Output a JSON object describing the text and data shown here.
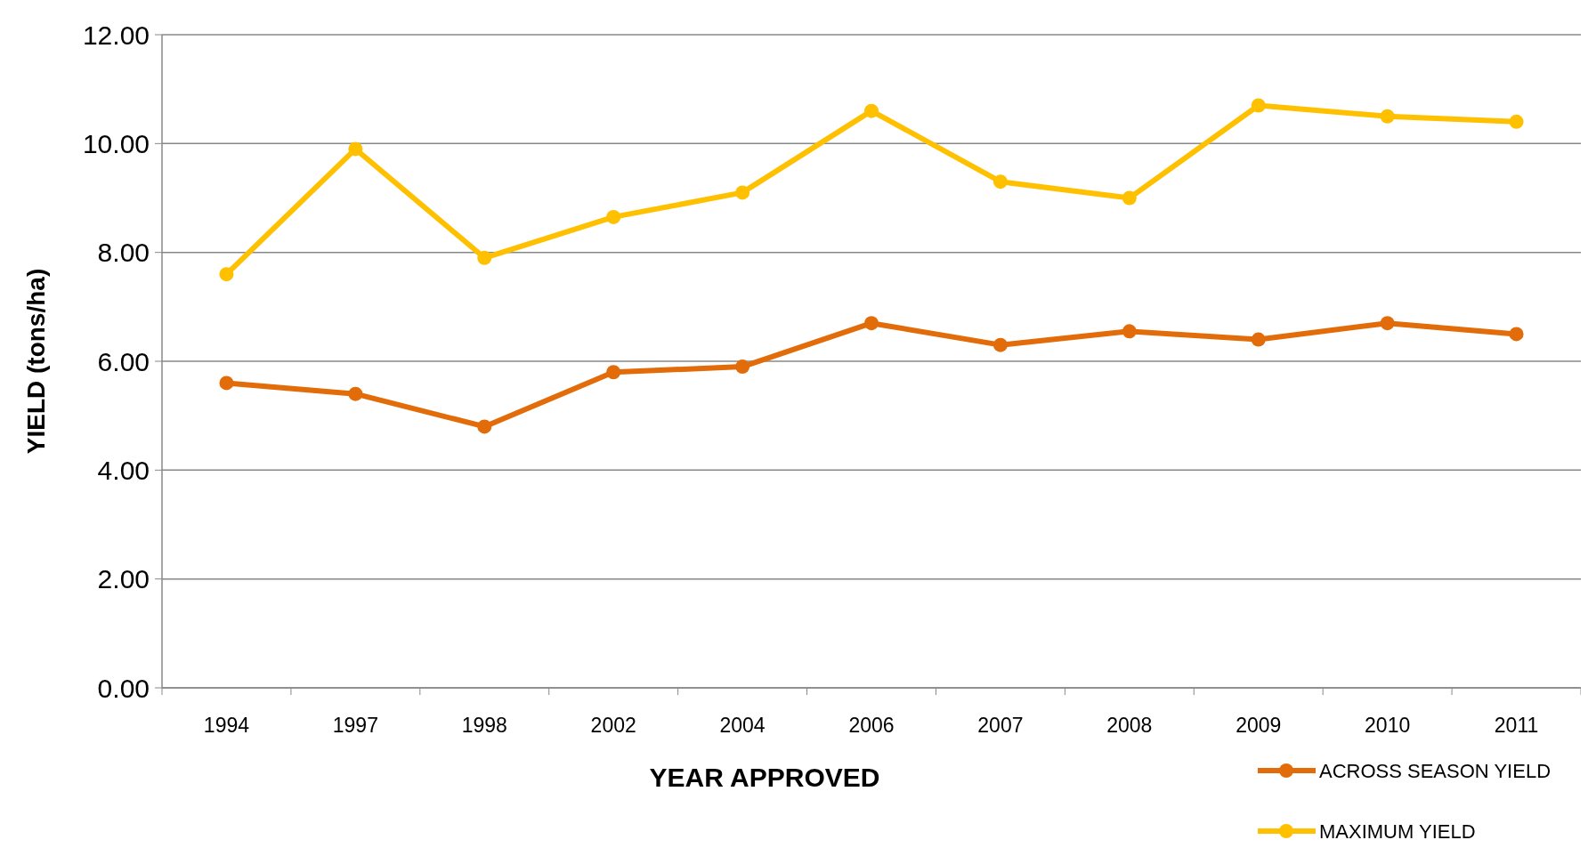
{
  "chart_data": {
    "type": "line",
    "xlabel": "YEAR APPROVED",
    "ylabel": "YIELD (tons/ha)",
    "categories": [
      "1994",
      "1997",
      "1998",
      "2002",
      "2004",
      "2006",
      "2007",
      "2008",
      "2009",
      "2010",
      "2011"
    ],
    "series": [
      {
        "name": "ACROSS SEASON YIELD",
        "color": "#e36c0a",
        "values": [
          5.6,
          5.4,
          4.8,
          5.8,
          5.9,
          6.7,
          6.3,
          6.55,
          6.4,
          6.7,
          6.5
        ]
      },
      {
        "name": "MAXIMUM YIELD",
        "color": "#ffc000",
        "values": [
          7.6,
          9.9,
          7.9,
          8.65,
          9.1,
          10.6,
          9.3,
          9.0,
          10.7,
          10.5,
          10.4
        ]
      }
    ],
    "ylim": [
      0,
      12
    ],
    "yticks": [
      {
        "value": 0,
        "label": "0.00"
      },
      {
        "value": 2,
        "label": "2.00"
      },
      {
        "value": 4,
        "label": "4.00"
      },
      {
        "value": 6,
        "label": "6.00"
      },
      {
        "value": 8,
        "label": "8.00"
      },
      {
        "value": 10,
        "label": "10.00"
      },
      {
        "value": 12,
        "label": "12.00"
      }
    ],
    "grid": "y",
    "legend": "bottom right",
    "marker": "circle",
    "line_style": "solid"
  }
}
